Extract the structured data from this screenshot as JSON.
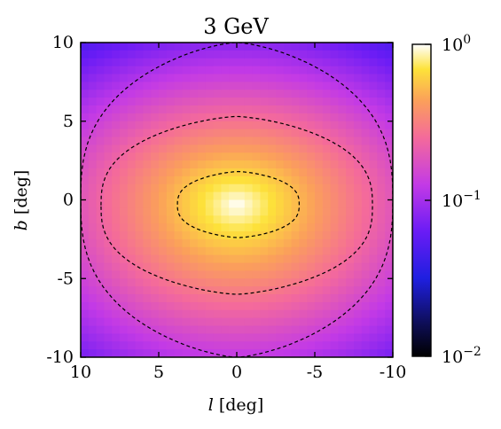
{
  "chart_data": {
    "type": "heatmap",
    "title": "3 GeV",
    "xlabel_var": "l",
    "xlabel_unit": "[deg]",
    "ylabel_var": "b",
    "ylabel_unit": "[deg]",
    "xlim": [
      10,
      -10
    ],
    "ylim": [
      -10,
      10
    ],
    "x_ticks": [
      {
        "value": 10,
        "label": "10"
      },
      {
        "value": 5,
        "label": "5"
      },
      {
        "value": 0,
        "label": "0"
      },
      {
        "value": -5,
        "label": "-5"
      },
      {
        "value": -10,
        "label": "-10"
      }
    ],
    "y_ticks": [
      {
        "value": 10,
        "label": "10"
      },
      {
        "value": 5,
        "label": "5"
      },
      {
        "value": 0,
        "label": "0"
      },
      {
        "value": -5,
        "label": "-5"
      },
      {
        "value": -10,
        "label": "-10"
      }
    ],
    "colorbar": {
      "scale": "log",
      "min": 0.01,
      "max": 1,
      "colormap": "gnuplot2",
      "ticks": [
        {
          "value": 1,
          "base": "10",
          "exp": "0"
        },
        {
          "value": 0.1,
          "base": "10",
          "exp": "−1"
        },
        {
          "value": 0.01,
          "base": "10",
          "exp": "−2"
        }
      ]
    },
    "grid": {
      "nx": 40,
      "ny": 40
    },
    "peak": {
      "l": 0,
      "b": -0.3,
      "value": 1.0
    },
    "contours": [
      {
        "level": 0.5,
        "style": "dashed",
        "extent_l": [
          -4.0,
          3.8
        ],
        "extent_b": [
          -2.4,
          1.8
        ]
      },
      {
        "level": 0.2,
        "style": "dashed",
        "extent_l": [
          -8.7,
          8.7
        ],
        "extent_b": [
          -6.0,
          5.3
        ]
      },
      {
        "level": 0.07,
        "style": "dashed",
        "extent_l": [
          -10,
          10
        ],
        "extent_b": [
          -10,
          10
        ]
      }
    ]
  }
}
